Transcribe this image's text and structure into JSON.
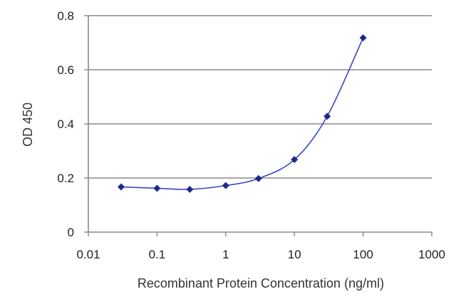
{
  "chart_data": {
    "type": "scatter",
    "title": "",
    "xlabel": "Recombinant Protein Concentration (ng/ml)",
    "ylabel": "OD 450",
    "x_scale": "log",
    "xlim": [
      0.01,
      1000
    ],
    "ylim": [
      0,
      0.8
    ],
    "x_ticks": [
      0.01,
      0.1,
      1,
      10,
      100,
      1000
    ],
    "x_tick_labels": [
      "0.01",
      "0.1",
      "1",
      "10",
      "100",
      "1000"
    ],
    "y_ticks": [
      0,
      0.2,
      0.4,
      0.6,
      0.8
    ],
    "y_tick_labels": [
      "0",
      "0.2",
      "0.4",
      "0.6",
      "0.8"
    ],
    "grid": "horizontal",
    "legend": "none",
    "series": [
      {
        "x": [
          0.03,
          0.1,
          0.3,
          1,
          3,
          10,
          30,
          100
        ],
        "y": [
          0.167,
          0.162,
          0.158,
          0.172,
          0.198,
          0.268,
          0.428,
          0.718
        ],
        "marker": "diamond",
        "fit_curve": true,
        "color": "#1c2a8c",
        "line_color": "#3b46c4"
      }
    ]
  }
}
